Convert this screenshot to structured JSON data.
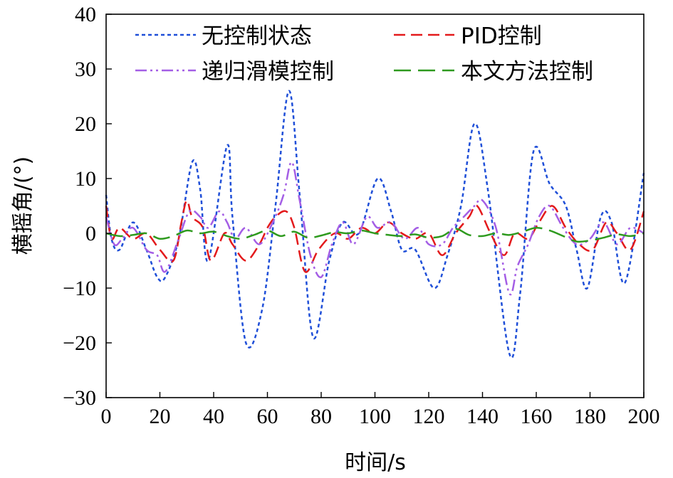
{
  "chart_data": {
    "type": "line",
    "title": "",
    "xlabel": "时间/s",
    "ylabel": "横摇角/(°)",
    "xlim": [
      0,
      200
    ],
    "ylim": [
      -30,
      40
    ],
    "xticks": [
      0,
      20,
      40,
      60,
      80,
      100,
      120,
      140,
      160,
      180,
      200
    ],
    "yticks": [
      -30,
      -20,
      -10,
      0,
      10,
      20,
      30,
      40
    ],
    "xtick_labels": [
      "0",
      "20",
      "40",
      "60",
      "80",
      "100",
      "120",
      "140",
      "160",
      "180",
      "200"
    ],
    "ytick_labels": [
      "−30",
      "−20",
      "−10",
      "0",
      "10",
      "20",
      "30",
      "40"
    ],
    "grid": false,
    "legend_position": "top",
    "series": [
      {
        "name": "无控制状态",
        "color": "#1f4fd8",
        "dash": "dotted",
        "x": [
          0,
          2,
          5,
          10,
          15,
          19,
          22,
          27,
          32,
          35,
          38,
          45,
          47,
          52,
          58,
          63,
          68,
          72,
          77,
          83,
          88,
          94,
          101,
          106,
          110,
          115,
          122,
          127,
          132,
          137,
          142,
          150,
          154,
          159,
          165,
          171,
          175,
          179,
          184,
          188,
          193,
          200
        ],
        "y": [
          7,
          -1,
          -3,
          2,
          -3,
          -8,
          -8,
          -1,
          13,
          8,
          -5,
          16,
          3,
          -20,
          -14,
          5,
          26,
          7,
          -19,
          -5,
          2,
          0,
          10,
          4,
          -3,
          -3,
          -10,
          -4,
          5,
          20,
          8,
          -22,
          -11,
          15,
          9,
          5,
          -3,
          -10,
          3,
          2,
          -9,
          11
        ]
      },
      {
        "name": "PID控制",
        "color": "#e31a1c",
        "dash": "dashed",
        "x": [
          0,
          2,
          5,
          10,
          15,
          20,
          25,
          28,
          30,
          32,
          36,
          39,
          44,
          47,
          52,
          57,
          60,
          63,
          67,
          70,
          74,
          79,
          85,
          90,
          95,
          100,
          105,
          110,
          115,
          120,
          125,
          130,
          135,
          138,
          143,
          148,
          152,
          157,
          161,
          166,
          171,
          176,
          181,
          186,
          190,
          195,
          200
        ],
        "y": [
          5,
          -1,
          1,
          -1,
          0,
          -3,
          -5,
          2,
          6,
          3,
          1,
          -5,
          0,
          -2,
          -5,
          -2,
          1,
          3,
          4,
          1,
          -7,
          -3,
          0,
          -1,
          1,
          0,
          2,
          0,
          -1,
          0,
          -4,
          0,
          3,
          5,
          0,
          -4,
          0,
          -1,
          2,
          5,
          1,
          -2,
          -3,
          2,
          0,
          -3,
          4
        ]
      },
      {
        "name": "递归滑模控制",
        "color": "#a45ee5",
        "dash": "dashdot",
        "x": [
          0,
          3,
          6,
          10,
          15,
          19,
          22,
          27,
          31,
          35,
          38,
          42,
          45,
          48,
          52,
          57,
          62,
          66,
          69,
          72,
          76,
          80,
          84,
          88,
          92,
          97,
          101,
          106,
          111,
          116,
          120,
          125,
          129,
          133,
          137,
          140,
          145,
          150,
          153,
          157,
          161,
          165,
          170,
          175,
          180,
          185,
          190,
          195,
          200
        ],
        "y": [
          3,
          -2,
          -1,
          1,
          -3,
          -4,
          -7,
          -1,
          4,
          3,
          1,
          4,
          2,
          -1,
          1,
          -2,
          2,
          7,
          13,
          6,
          -4,
          -8,
          -2,
          2,
          -2,
          3,
          1,
          2,
          -1,
          1,
          -2,
          -2,
          1,
          3,
          5,
          6,
          1,
          -11,
          -6,
          -2,
          3,
          5,
          1,
          -2,
          -1,
          2,
          -2,
          1,
          0
        ]
      },
      {
        "name": "本文方法控制",
        "color": "#2e9a1e",
        "dash": "longdash",
        "x": [
          0,
          5,
          10,
          15,
          20,
          25,
          30,
          35,
          40,
          45,
          50,
          55,
          60,
          65,
          70,
          75,
          80,
          85,
          90,
          95,
          100,
          105,
          110,
          115,
          120,
          125,
          130,
          135,
          140,
          145,
          150,
          155,
          160,
          165,
          170,
          175,
          180,
          185,
          190,
          195,
          200
        ],
        "y": [
          0,
          -0.5,
          -0.3,
          0,
          -1,
          -0.5,
          0.5,
          0,
          0.3,
          -0.5,
          -1,
          -0.3,
          0.5,
          -0.5,
          0.3,
          -0.8,
          -0.4,
          0.2,
          0,
          0.5,
          0,
          -0.3,
          -0.5,
          -0.2,
          -0.8,
          -0.5,
          0.8,
          -0.3,
          -0.5,
          0,
          -0.3,
          0.3,
          1,
          0.5,
          -0.5,
          -1.5,
          -1.3,
          -0.8,
          -0.2,
          -0.5,
          0
        ]
      }
    ]
  }
}
